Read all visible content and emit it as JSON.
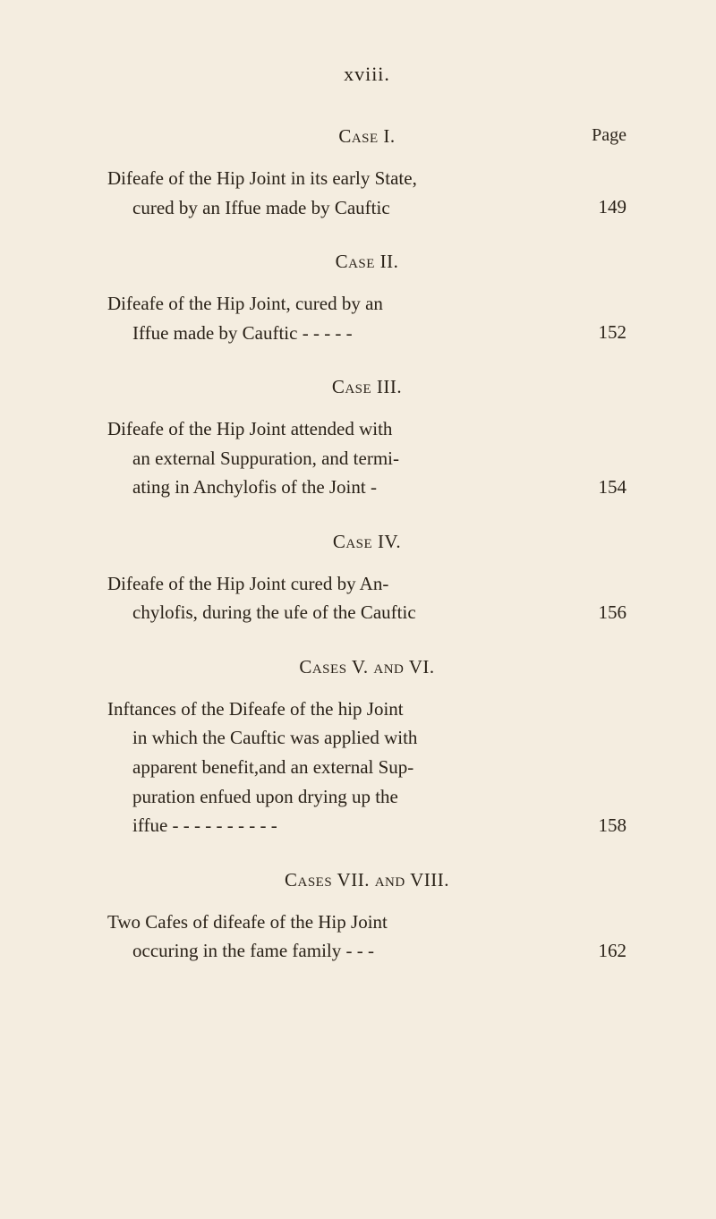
{
  "header": {
    "roman": "xviii."
  },
  "pageLabel": "Page",
  "entries": [
    {
      "heading": "Case I.",
      "lines": [
        "Difeafe of the Hip Joint in its early State,",
        "cured by an Iffue made by Cauftic"
      ],
      "pageRef": "149"
    },
    {
      "heading": "Case II.",
      "lines": [
        "Difeafe of the Hip Joint, cured by an",
        "Iffue made by Cauftic -   -   -   -   -"
      ],
      "pageRef": "152"
    },
    {
      "heading": "Case III.",
      "lines": [
        "Difeafe of the Hip Joint attended with",
        "an external Suppuration, and termi-",
        "ating in Anchylofis of the Joint    -"
      ],
      "pageRef": "154"
    },
    {
      "heading": "Case IV.",
      "lines": [
        "Difeafe of the Hip Joint cured by An-",
        "chylofis, during the ufe of the Cauftic"
      ],
      "pageRef": "156"
    },
    {
      "heading": "Cases V. and VI.",
      "lines": [
        "Inftances of the Difeafe of the hip Joint",
        "in which the Cauftic was applied with",
        "apparent benefit,and an external Sup-",
        "puration enfued upon drying up the",
        "iffue -   -   -   -   -   -   -   -   -   -"
      ],
      "pageRef": "158"
    },
    {
      "heading": "Cases VII. and VIII.",
      "lines": [
        "Two Cafes of difeafe of the Hip Joint",
        "occuring in the fame family   -   -   -"
      ],
      "pageRef": "162"
    }
  ],
  "style": {
    "backgroundColor": "#f4ede0",
    "textColor": "#2a2218",
    "bodyFontSize": 21,
    "headerFontSize": 22,
    "lineHeight": 1.55,
    "pageWidth": 800,
    "pageHeight": 1362
  }
}
